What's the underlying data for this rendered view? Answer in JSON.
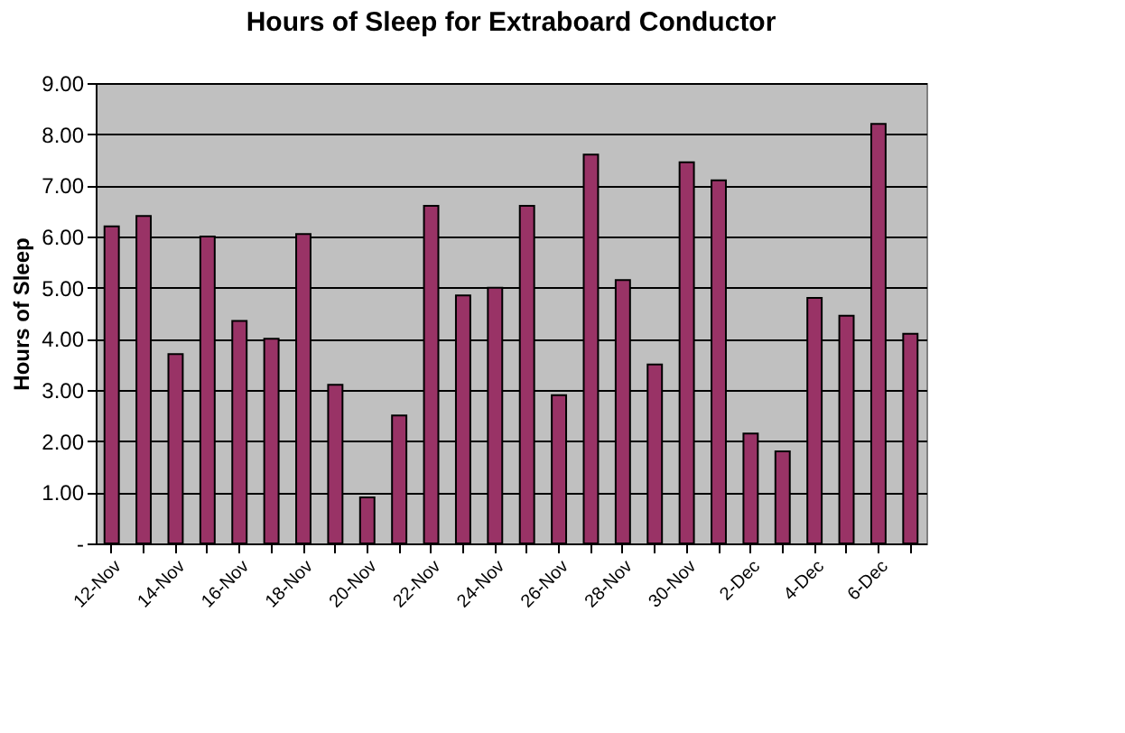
{
  "chart_data": {
    "type": "bar",
    "title": "Hours of Sleep for Extraboard Conductor",
    "ylabel": "Hours of Sleep",
    "categories": [
      "12-Nov",
      null,
      "14-Nov",
      null,
      "16-Nov",
      null,
      "18-Nov",
      null,
      "20-Nov",
      null,
      "22-Nov",
      null,
      "24-Nov",
      null,
      "26-Nov",
      null,
      "28-Nov",
      null,
      "30-Nov",
      null,
      "2-Dec",
      null,
      "4-Dec",
      null,
      "6-Dec",
      null
    ],
    "values": [
      6.2,
      6.4,
      3.7,
      6.0,
      4.35,
      4.0,
      6.05,
      3.1,
      0.9,
      2.5,
      6.6,
      4.85,
      5.0,
      6.6,
      2.9,
      7.6,
      5.15,
      3.5,
      7.45,
      7.1,
      2.15,
      1.8,
      4.8,
      4.45,
      8.2,
      4.1
    ],
    "color": "#993366",
    "ylim": [
      0,
      9
    ],
    "yticks": [
      {
        "value": 0,
        "label": "-"
      },
      {
        "value": 1,
        "label": "1.00"
      },
      {
        "value": 2,
        "label": "2.00"
      },
      {
        "value": 3,
        "label": "3.00"
      },
      {
        "value": 4,
        "label": "4.00"
      },
      {
        "value": 5,
        "label": "5.00"
      },
      {
        "value": 6,
        "label": "6.00"
      },
      {
        "value": 7,
        "label": "7.00"
      },
      {
        "value": 8,
        "label": "8.00"
      },
      {
        "value": 9,
        "label": "9.00"
      }
    ],
    "grid": "y"
  }
}
